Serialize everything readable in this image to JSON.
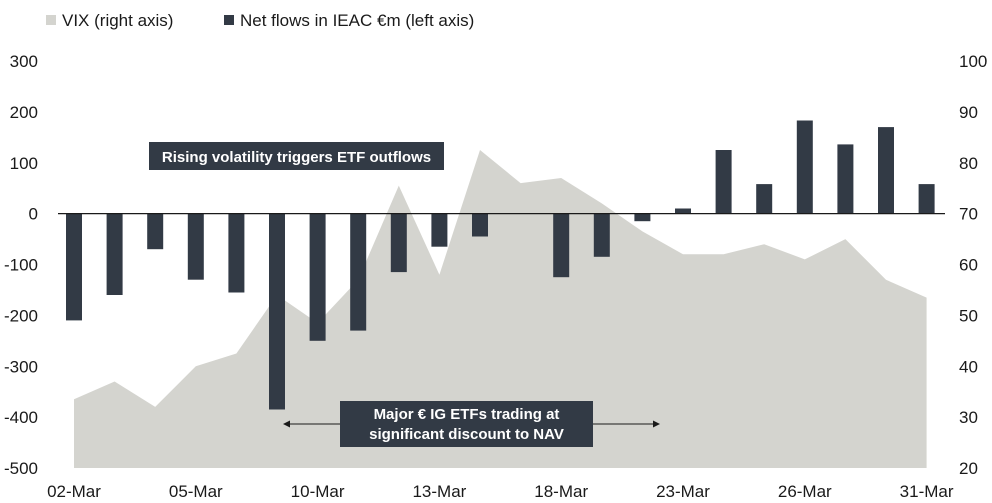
{
  "chart_data": {
    "type": "bar",
    "title": "",
    "legend": {
      "placement": "top-left",
      "items": [
        {
          "label": "VIX (right axis)",
          "color": "#d4d4cf"
        },
        {
          "label": "Net flows in IEAC €m (left axis)",
          "color": "#323a45"
        }
      ]
    },
    "x_tick_labels": [
      "02-Mar",
      "05-Mar",
      "10-Mar",
      "13-Mar",
      "18-Mar",
      "23-Mar",
      "26-Mar",
      "31-Mar"
    ],
    "x_tick_positions": [
      0,
      3,
      6,
      9,
      12,
      15,
      18,
      21
    ],
    "left_axis": {
      "min": -500,
      "max": 300,
      "ticks": [
        300,
        200,
        100,
        0,
        -100,
        -200,
        -300,
        -400,
        -500
      ]
    },
    "right_axis": {
      "min": 20,
      "max": 100,
      "ticks": [
        100,
        90,
        80,
        70,
        60,
        50,
        40,
        30,
        20
      ]
    },
    "grid": false,
    "series": [
      {
        "name": "Net flows in IEAC €m (left axis)",
        "type": "bar",
        "axis": "left",
        "color": "#323a45",
        "values": [
          -210,
          -160,
          -70,
          -130,
          -155,
          -385,
          -250,
          -230,
          -115,
          -65,
          -45,
          0,
          -125,
          -85,
          -15,
          10,
          125,
          58,
          183,
          136,
          170,
          58
        ]
      },
      {
        "name": "VIX (right axis)",
        "type": "area",
        "axis": "right",
        "color": "#d4d4cf",
        "values": [
          33.5,
          37,
          32,
          40,
          42.5,
          54,
          48.5,
          57,
          75.5,
          58,
          82.5,
          76,
          77,
          72,
          66.5,
          62,
          62,
          64,
          61,
          65,
          57,
          53.5
        ]
      }
    ],
    "annotations": [
      {
        "text": "Rising volatility triggers ETF outflows"
      },
      {
        "lines": [
          "Major € IG ETFs trading at",
          "significant discount to NAV"
        ]
      }
    ]
  }
}
